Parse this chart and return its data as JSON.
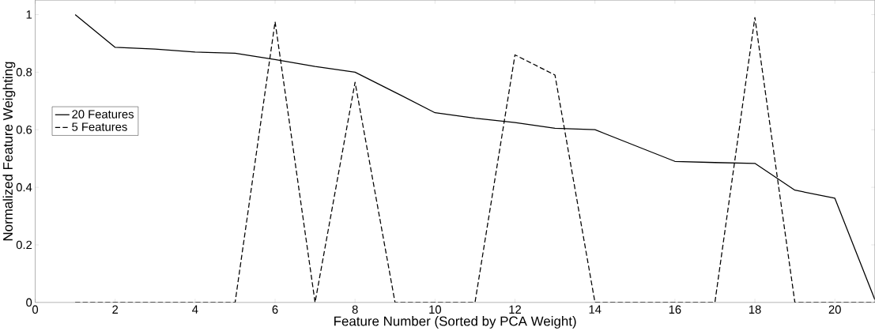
{
  "chart_data": {
    "type": "line",
    "xlabel": "Feature Number (Sorted by PCA Weight)",
    "ylabel": "Normalized Feature Weighting",
    "x": [
      1,
      2,
      3,
      4,
      5,
      6,
      7,
      8,
      9,
      10,
      11,
      12,
      13,
      14,
      15,
      16,
      17,
      18,
      19,
      20,
      21
    ],
    "series": [
      {
        "name": "20 Features",
        "color": "#000000",
        "line_style": "solid",
        "values": [
          1.0,
          0.886,
          0.88,
          0.87,
          0.866,
          0.844,
          0.82,
          0.8,
          0.73,
          0.659,
          0.64,
          0.625,
          0.605,
          0.6,
          0.545,
          0.49,
          0.486,
          0.483,
          0.39,
          0.362,
          0.01
        ]
      },
      {
        "name": "5 Features",
        "color": "#000000",
        "line_style": "dashed",
        "values": [
          0,
          0,
          0,
          0,
          0,
          0.975,
          0,
          0.765,
          0,
          0,
          0,
          0.86,
          0.79,
          0,
          0,
          0,
          0,
          0.99,
          0,
          0,
          0
        ]
      }
    ],
    "xlim": [
      0,
      21
    ],
    "ylim": [
      0,
      1.05
    ],
    "xticks": [
      0,
      2,
      4,
      6,
      8,
      10,
      12,
      14,
      16,
      18,
      20
    ],
    "yticks": [
      0,
      0.2,
      0.4,
      0.6,
      0.8,
      1
    ],
    "legend": "left",
    "grid": false,
    "marker": "none"
  }
}
